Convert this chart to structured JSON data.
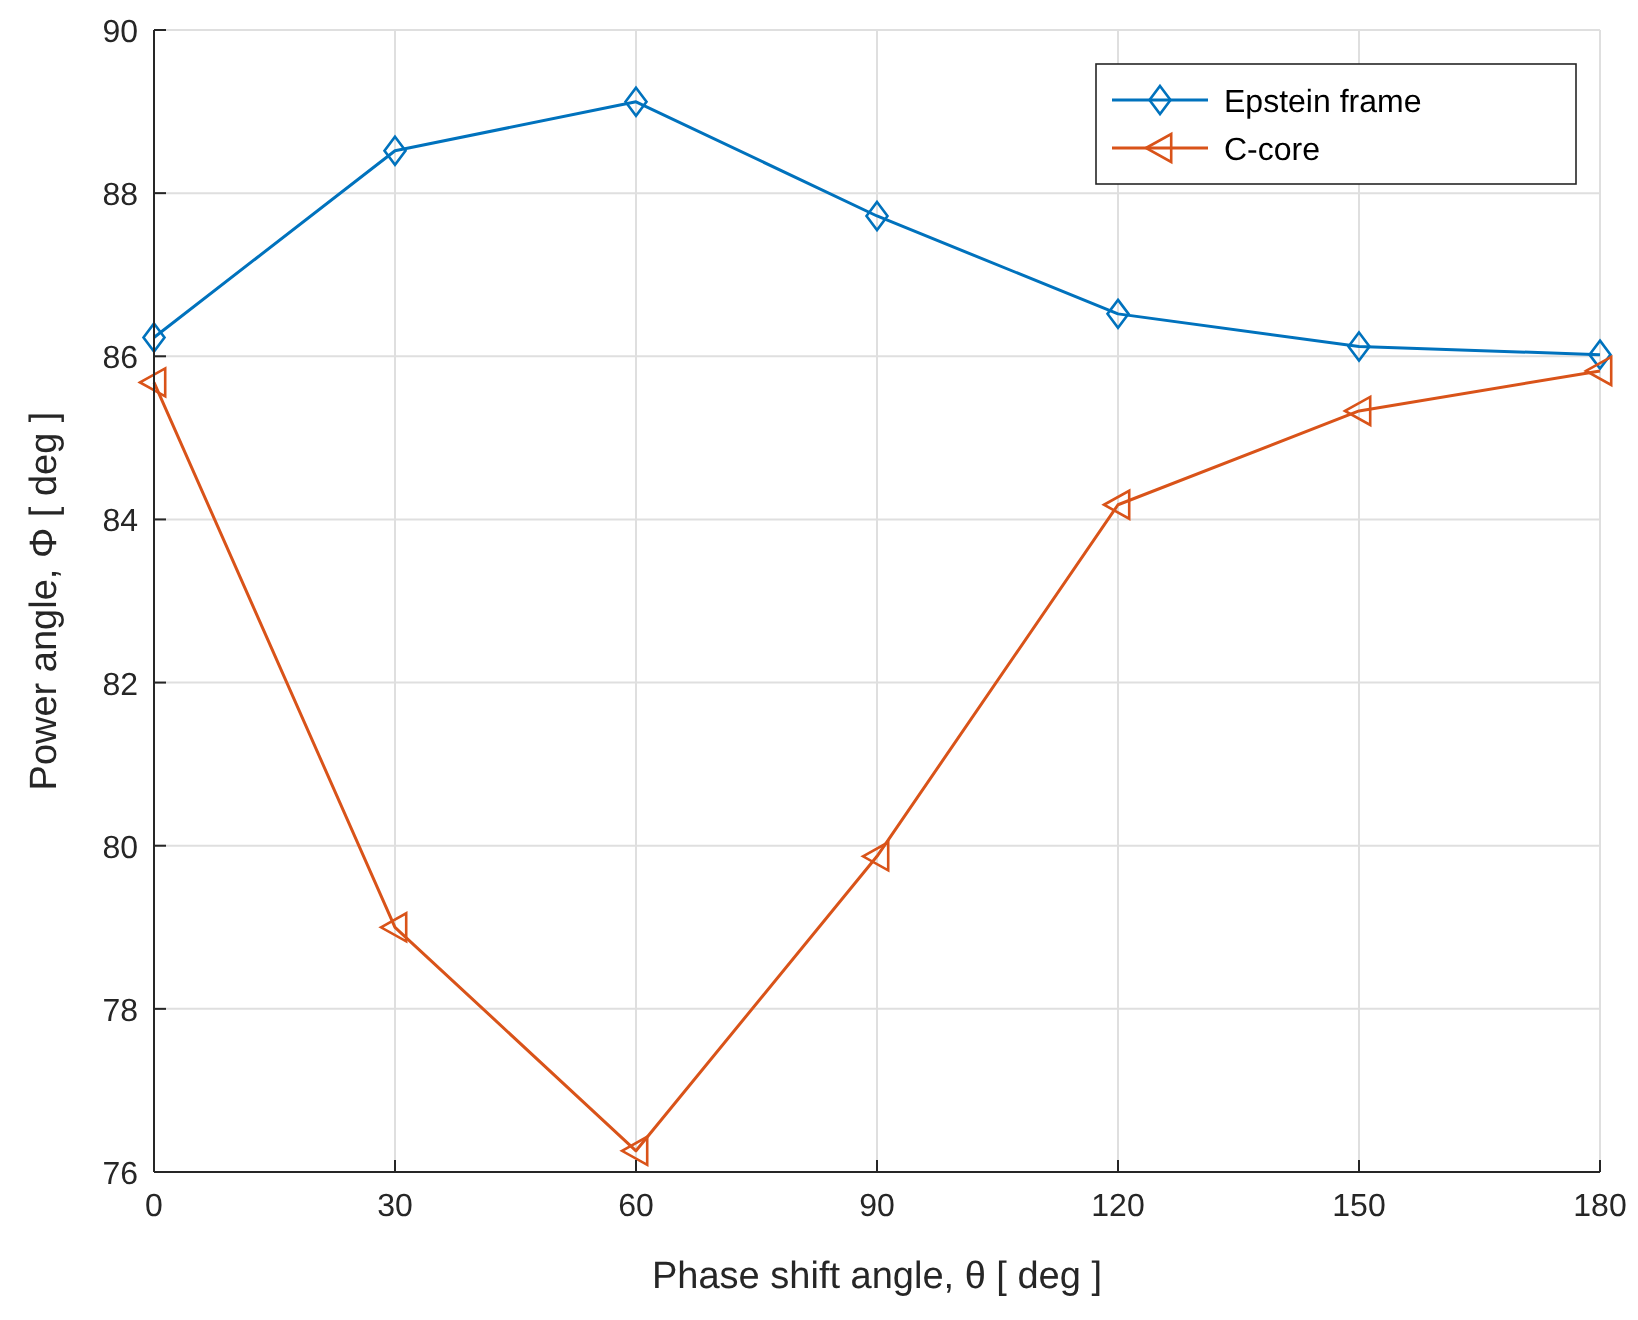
{
  "chart_data": {
    "type": "line",
    "xlabel": "Phase shift angle, θ [ deg ]",
    "ylabel": "Power angle, Φ [ deg ]",
    "x": [
      0,
      30,
      60,
      90,
      120,
      150,
      180
    ],
    "series": [
      {
        "name": "Epstein frame",
        "color": "#0072bd",
        "marker": "diamond",
        "values": [
          86.23,
          88.52,
          89.12,
          87.72,
          86.52,
          86.12,
          86.02
        ]
      },
      {
        "name": "C-core",
        "color": "#d95319",
        "marker": "triangle",
        "values": [
          85.68,
          79.0,
          76.26,
          79.87,
          84.18,
          85.33,
          85.82
        ]
      }
    ],
    "xlim": [
      0,
      180
    ],
    "xticks": [
      0,
      30,
      60,
      90,
      120,
      150,
      180
    ],
    "ylim": [
      76,
      90
    ],
    "yticks": [
      76,
      78,
      80,
      82,
      84,
      86,
      88,
      90
    ],
    "grid": true,
    "legend": "top right",
    "line_style": "solid"
  }
}
